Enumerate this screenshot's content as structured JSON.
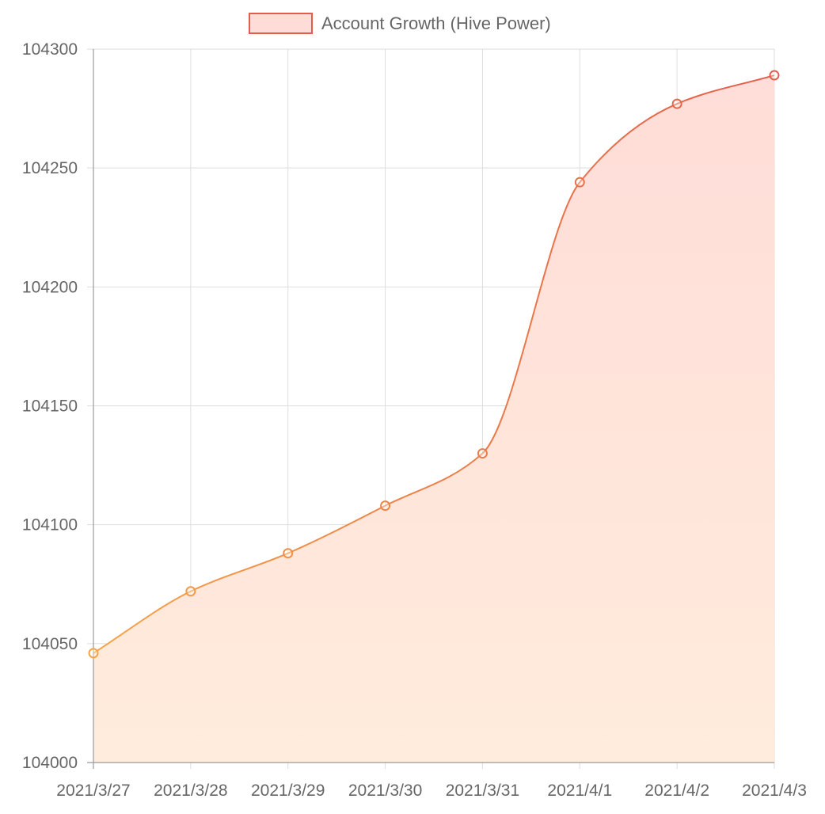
{
  "chart_data": {
    "type": "area",
    "title": "",
    "xlabel": "",
    "ylabel": "",
    "legend": {
      "position": "top-center",
      "entries": [
        {
          "label": "Account Growth (Hive Power)"
        }
      ]
    },
    "categories": [
      "2021/3/27",
      "2021/3/28",
      "2021/3/29",
      "2021/3/30",
      "2021/3/31",
      "2021/4/1",
      "2021/4/2",
      "2021/4/3"
    ],
    "series": [
      {
        "name": "Account Growth (Hive Power)",
        "values": [
          104046,
          104072,
          104088,
          104108,
          104130,
          104244,
          104277,
          104289
        ]
      }
    ],
    "ylim": [
      104000,
      104300
    ],
    "yticks": [
      "104000",
      "104050",
      "104100",
      "104150",
      "104200",
      "104250",
      "104300"
    ],
    "grid": true,
    "colors": {
      "line_start": "#f5a447",
      "line_end": "#e45c4b",
      "fill_start": "#ffecdc",
      "fill_end": "#ffdcd8",
      "legend_swatch_fill": "#ffdcd8",
      "legend_swatch_border": "#e45c4b",
      "grid": "#dedede",
      "axis": "#999999",
      "text": "#666666"
    }
  }
}
